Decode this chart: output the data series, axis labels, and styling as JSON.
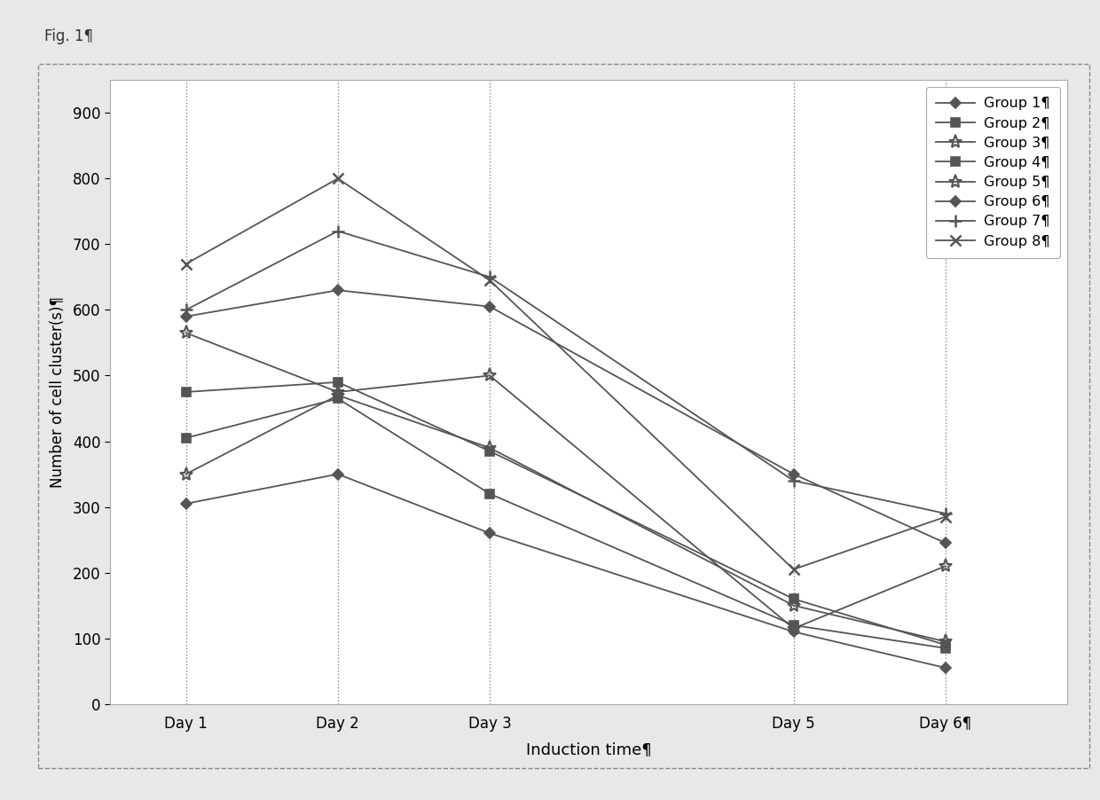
{
  "series": [
    {
      "name": "Group 1¶",
      "values": [
        305,
        350,
        260,
        110,
        55
      ],
      "marker": "D"
    },
    {
      "name": "Group 2¶",
      "values": [
        405,
        465,
        320,
        120,
        85
      ],
      "marker": "s"
    },
    {
      "name": "Group 3¶",
      "values": [
        350,
        470,
        390,
        150,
        95
      ],
      "marker": "*"
    },
    {
      "name": "Group 4¶",
      "values": [
        475,
        490,
        385,
        160,
        90
      ],
      "marker": "s"
    },
    {
      "name": "Group 5¶",
      "values": [
        565,
        475,
        500,
        115,
        210
      ],
      "marker": "*"
    },
    {
      "name": "Group 6¶",
      "values": [
        590,
        630,
        605,
        350,
        245
      ],
      "marker": "D"
    },
    {
      "name": "Group 7¶",
      "values": [
        600,
        720,
        650,
        340,
        290
      ],
      "marker": "+"
    },
    {
      "name": "Group 8¶",
      "values": [
        670,
        800,
        645,
        205,
        285
      ],
      "marker": "x"
    }
  ],
  "x_positions": [
    1,
    2,
    3,
    5,
    6
  ],
  "x_tick_labels": [
    "Day 1",
    "Day 2",
    "Day 3",
    "Day 5",
    "Day 6¶"
  ],
  "ylabel": "Number of cell cluster(s)¶",
  "xlabel": "Induction time¶",
  "fig_label": "Fig. 1¶",
  "ylim": [
    0,
    950
  ],
  "yticks": [
    0,
    100,
    200,
    300,
    400,
    500,
    600,
    700,
    800,
    900
  ],
  "line_color": "#555555",
  "bg_color": "#f0f0f0",
  "plot_bg": "#ffffff",
  "border_color": "#aaaaaa"
}
